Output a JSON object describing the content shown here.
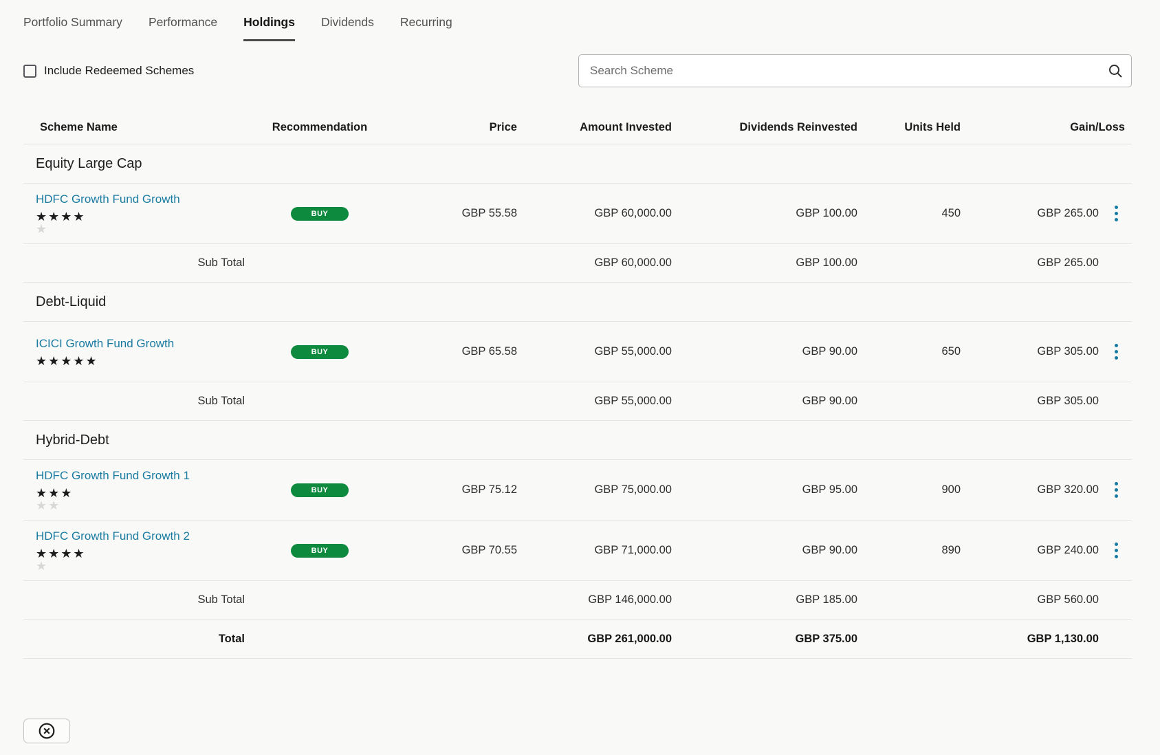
{
  "tabs": [
    {
      "label": "Portfolio Summary",
      "active": false
    },
    {
      "label": "Performance",
      "active": false
    },
    {
      "label": "Holdings",
      "active": true
    },
    {
      "label": "Dividends",
      "active": false
    },
    {
      "label": "Recurring",
      "active": false
    }
  ],
  "controls": {
    "include_redeemed_label": "Include Redeemed Schemes",
    "include_redeemed_checked": false,
    "search_placeholder": "Search Scheme",
    "search_value": "",
    "search_icon": "magnifier-icon"
  },
  "table": {
    "columns": [
      "Scheme Name",
      "Recommendation",
      "Price",
      "Amount Invested",
      "Dividends Reinvested",
      "Units Held",
      "Gain/Loss"
    ],
    "groups": [
      {
        "name": "Equity Large Cap",
        "rows": [
          {
            "scheme": "HDFC Growth Fund Growth",
            "rating": 4,
            "rating_max": 5,
            "recommendation": "BUY",
            "price": "GBP 55.58",
            "amount_invested": "GBP 60,000.00",
            "dividends_reinvested": "GBP 100.00",
            "units_held": "450",
            "gain_loss": "GBP 265.00"
          }
        ],
        "sub_total": {
          "label": "Sub Total",
          "amount_invested": "GBP 60,000.00",
          "dividends_reinvested": "GBP 100.00",
          "gain_loss": "GBP 265.00"
        }
      },
      {
        "name": "Debt-Liquid",
        "rows": [
          {
            "scheme": "ICICI Growth Fund Growth",
            "rating": 5,
            "rating_max": 5,
            "recommendation": "BUY",
            "price": "GBP 65.58",
            "amount_invested": "GBP 55,000.00",
            "dividends_reinvested": "GBP 90.00",
            "units_held": "650",
            "gain_loss": "GBP 305.00"
          }
        ],
        "sub_total": {
          "label": "Sub Total",
          "amount_invested": "GBP 55,000.00",
          "dividends_reinvested": "GBP 90.00",
          "gain_loss": "GBP 305.00"
        }
      },
      {
        "name": "Hybrid-Debt",
        "rows": [
          {
            "scheme": "HDFC Growth Fund Growth 1",
            "rating": 3,
            "rating_max": 5,
            "recommendation": "BUY",
            "price": "GBP 75.12",
            "amount_invested": "GBP 75,000.00",
            "dividends_reinvested": "GBP 95.00",
            "units_held": "900",
            "gain_loss": "GBP 320.00"
          },
          {
            "scheme": "HDFC Growth Fund Growth 2",
            "rating": 4,
            "rating_max": 5,
            "recommendation": "BUY",
            "price": "GBP 70.55",
            "amount_invested": "GBP 71,000.00",
            "dividends_reinvested": "GBP 90.00",
            "units_held": "890",
            "gain_loss": "GBP 240.00"
          }
        ],
        "sub_total": {
          "label": "Sub Total",
          "amount_invested": "GBP 146,000.00",
          "dividends_reinvested": "GBP 185.00",
          "gain_loss": "GBP 560.00"
        }
      }
    ],
    "total": {
      "label": "Total",
      "amount_invested": "GBP 261,000.00",
      "dividends_reinvested": "GBP 375.00",
      "gain_loss": "GBP 1,130.00"
    }
  },
  "footer": {
    "close_button_icon": "circled-x-icon"
  },
  "colors": {
    "background": "#f9f9f8",
    "link_blue": "#1a7ba1",
    "buy_badge_green": "#0e8a3f",
    "star_filled": "#1c1c1c",
    "star_empty": "#d8d8d6",
    "tab_active_underline": "#4a4a4a",
    "divider": "#e5e5e3"
  }
}
